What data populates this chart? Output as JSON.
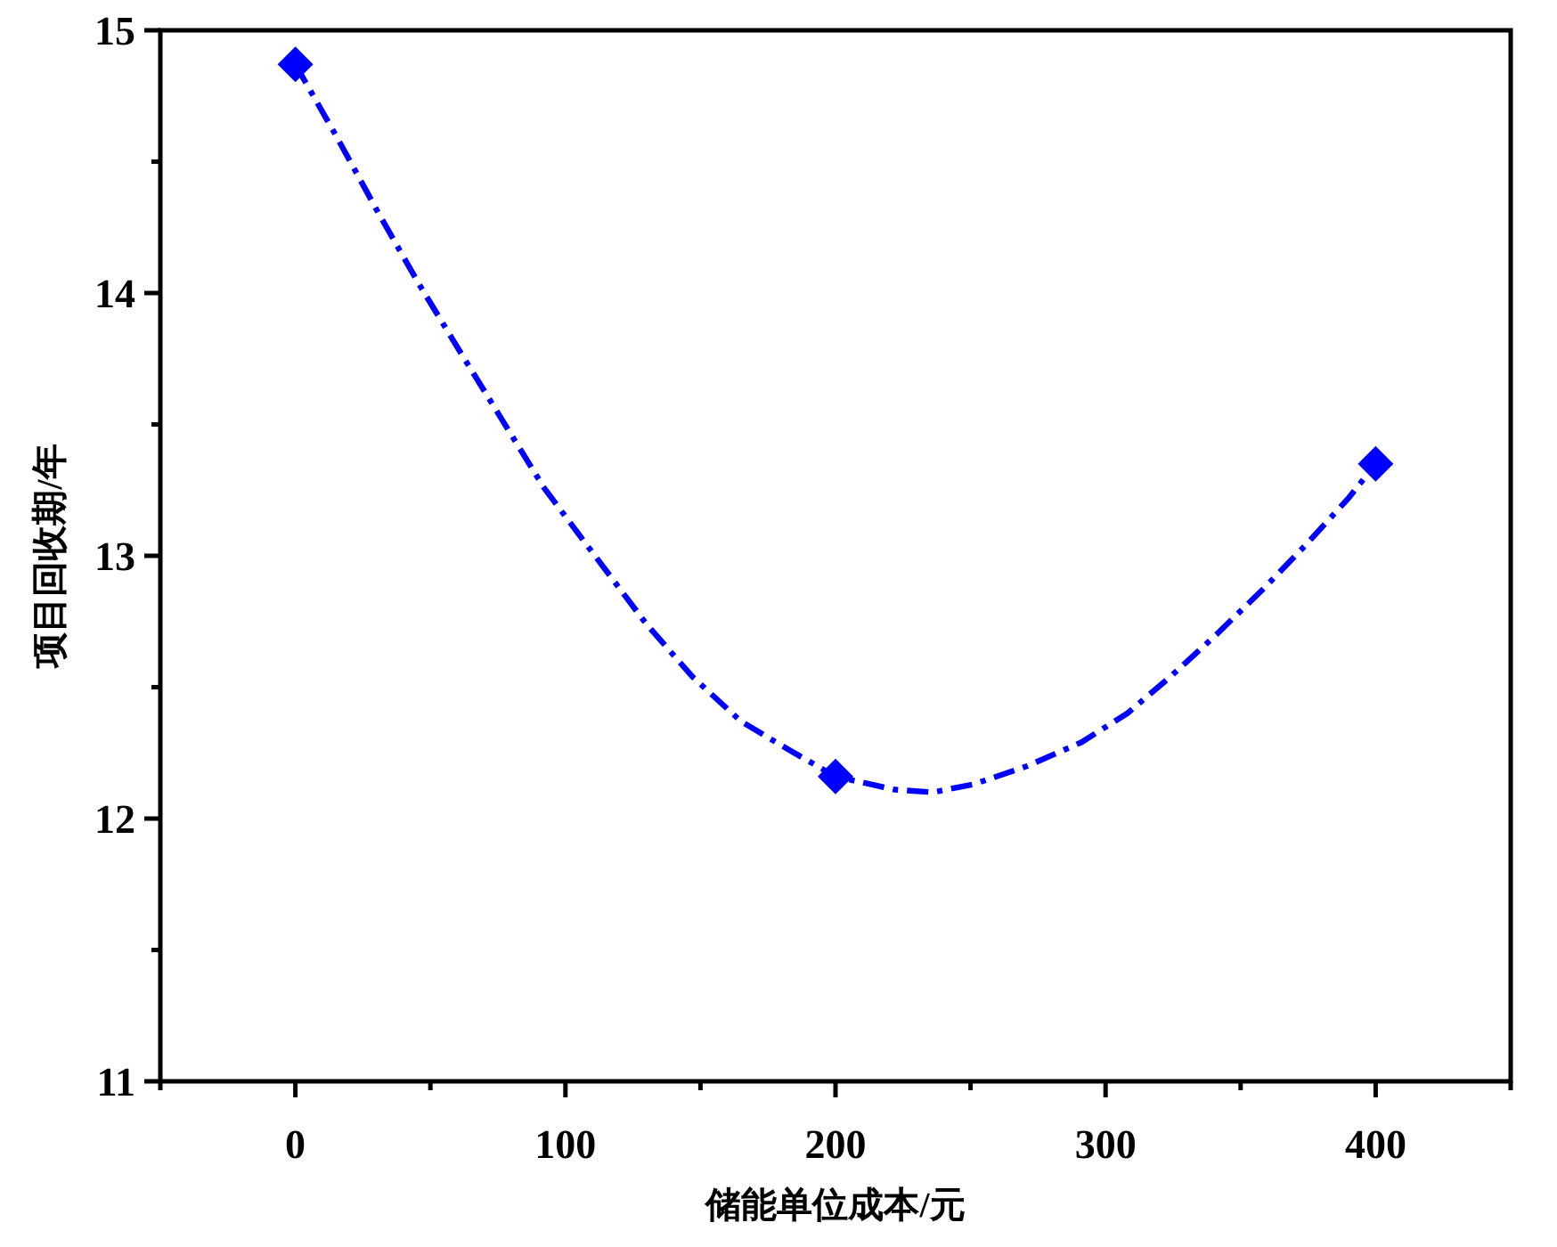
{
  "chart_data": {
    "type": "line",
    "xlabel": "储能单位成本/元",
    "ylabel": "项目回收期/年",
    "xlim": [
      -50,
      450
    ],
    "xticks": [
      {
        "value": -50,
        "label": null
      },
      0,
      {
        "value": 50,
        "label": null
      },
      100,
      {
        "value": 150,
        "label": null
      },
      200,
      {
        "value": 250,
        "label": null
      },
      300,
      {
        "value": 350,
        "label": null
      },
      400,
      {
        "value": 450,
        "label": null
      }
    ],
    "ylim": [
      11,
      15
    ],
    "yticks": [
      11,
      {
        "value": 11.5,
        "label": null
      },
      12,
      {
        "value": 12.5,
        "label": null
      },
      13,
      {
        "value": 13.5,
        "label": null
      },
      14,
      {
        "value": 14.5,
        "label": null
      },
      15
    ],
    "series": [
      {
        "color": "#0000ff",
        "line_style": "dashdot",
        "marker": "none",
        "x": [
          0,
          15,
          31,
          46,
          62,
          77,
          92,
          108,
          130,
          147,
          165,
          183,
          200,
          222,
          236,
          251,
          271,
          291,
          308,
          324,
          341,
          359,
          374,
          390,
          400
        ],
        "values": [
          14.87,
          14.6,
          14.3,
          14.03,
          13.76,
          13.51,
          13.26,
          13.04,
          12.74,
          12.54,
          12.37,
          12.26,
          12.16,
          12.11,
          12.1,
          12.13,
          12.2,
          12.29,
          12.4,
          12.54,
          12.7,
          12.88,
          13.04,
          13.22,
          13.35
        ]
      },
      {
        "type": "scatter",
        "color": "#0000ff",
        "marker": "diamond",
        "x": [
          0,
          200,
          400
        ],
        "values": [
          14.87,
          12.16,
          13.35
        ]
      }
    ]
  }
}
